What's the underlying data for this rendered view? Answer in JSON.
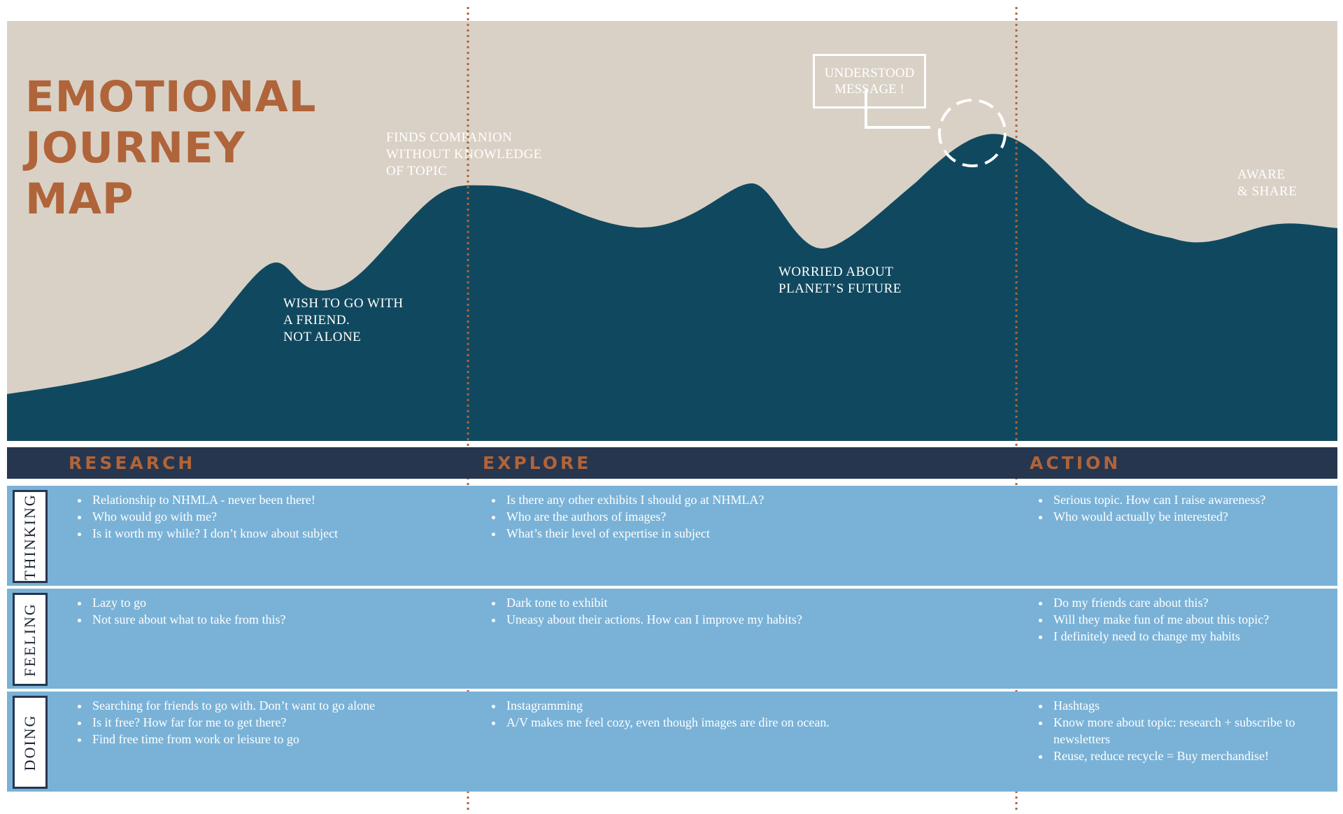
{
  "title": {
    "line1": "EMOTIONAL",
    "line2": "JOURNEY",
    "line3": "MAP"
  },
  "annotations": {
    "wish": [
      "WISH TO GO WITH",
      "A FRIEND.",
      "NOT ALONE"
    ],
    "finds": [
      "FINDS COMPANION",
      "WITHOUT KNOWLEDGE",
      "OF TOPIC"
    ],
    "worried": [
      "WORRIED ABOUT",
      "PLANET’S FUTURE"
    ],
    "aware": [
      "AWARE",
      "& SHARE"
    ],
    "callout": [
      "UNDERSTOOD",
      "MESSAGE !"
    ]
  },
  "phases": [
    "RESEARCH",
    "EXPLORE",
    "ACTION"
  ],
  "rows": [
    {
      "label": "THINKING",
      "cells": [
        [
          "Relationship to NHMLA - never been there!",
          "Who would go with me?",
          "Is it worth my while? I don’t know about subject"
        ],
        [
          "Is there any other exhibits I should go at NHMLA?",
          "Who are the authors of images?",
          "What’s their level of expertise in subject"
        ],
        [
          "Serious topic. How can I raise awareness?",
          "Who would actually be interested?"
        ]
      ]
    },
    {
      "label": "FEELING",
      "cells": [
        [
          "Lazy to go",
          "Not sure about what to take from this?"
        ],
        [
          "Dark tone to exhibit",
          "Uneasy about their actions. How can I improve my habits?"
        ],
        [
          "Do my friends care about this?",
          "Will they make fun of me about this topic?",
          "I definitely need to change my habits"
        ]
      ]
    },
    {
      "label": "DOING",
      "cells": [
        [
          "Searching for friends to go with. Don’t want to go alone",
          "Is it free? How far for me to get there?",
          "Find free time from work or leisure to go"
        ],
        [
          "Instagramming",
          "A/V makes me feel cozy, even though images are dire on ocean."
        ],
        [
          "Hashtags",
          "Know more about topic: research + subscribe to newsletters",
          "Reuse, reduce recycle = Buy merchandise!"
        ]
      ]
    }
  ],
  "colors": {
    "wave": "#10495f",
    "panel_bg": "#d9d1c6",
    "accent": "#b0643a",
    "phase_bar": "#26364f",
    "row_bg": "#7ab2d7",
    "divider": "#b0643a"
  }
}
